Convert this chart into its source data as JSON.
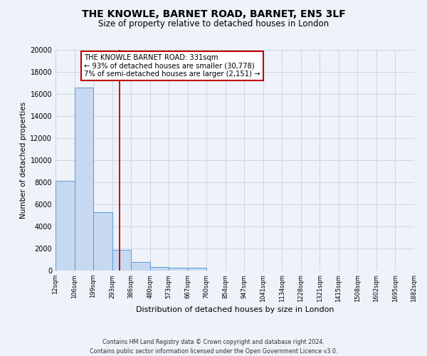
{
  "title": "THE KNOWLE, BARNET ROAD, BARNET, EN5 3LF",
  "subtitle": "Size of property relative to detached houses in London",
  "xlabel": "Distribution of detached houses by size in London",
  "ylabel": "Number of detached properties",
  "bar_values": [
    8150,
    16600,
    5300,
    1850,
    800,
    300,
    270,
    270,
    0,
    0,
    0,
    0,
    0,
    0,
    0,
    0,
    0,
    0,
    0
  ],
  "bin_labels": [
    "12sqm",
    "106sqm",
    "199sqm",
    "293sqm",
    "386sqm",
    "480sqm",
    "573sqm",
    "667sqm",
    "760sqm",
    "854sqm",
    "947sqm",
    "1041sqm",
    "1134sqm",
    "1228sqm",
    "1321sqm",
    "1415sqm",
    "1508sqm",
    "1602sqm",
    "1695sqm",
    "1882sqm"
  ],
  "bar_color": "#c6d9f0",
  "bar_edge_color": "#5b9bd5",
  "vline_x": 3.38,
  "vline_color": "#c00000",
  "ylim": [
    0,
    20000
  ],
  "yticks": [
    0,
    2000,
    4000,
    6000,
    8000,
    10000,
    12000,
    14000,
    16000,
    18000,
    20000
  ],
  "annotation_title": "THE KNOWLE BARNET ROAD: 331sqm",
  "annotation_line1": "← 93% of detached houses are smaller (30,778)",
  "annotation_line2": "7% of semi-detached houses are larger (2,151) →",
  "annotation_box_color": "#ffffff",
  "annotation_box_edge": "#c00000",
  "footer_line1": "Contains HM Land Registry data © Crown copyright and database right 2024.",
  "footer_line2": "Contains public sector information licensed under the Open Government Licence v3.0.",
  "background_color": "#eef2f9",
  "plot_bg_color": "#eef2f9",
  "grid_color": "#c8d0e0"
}
